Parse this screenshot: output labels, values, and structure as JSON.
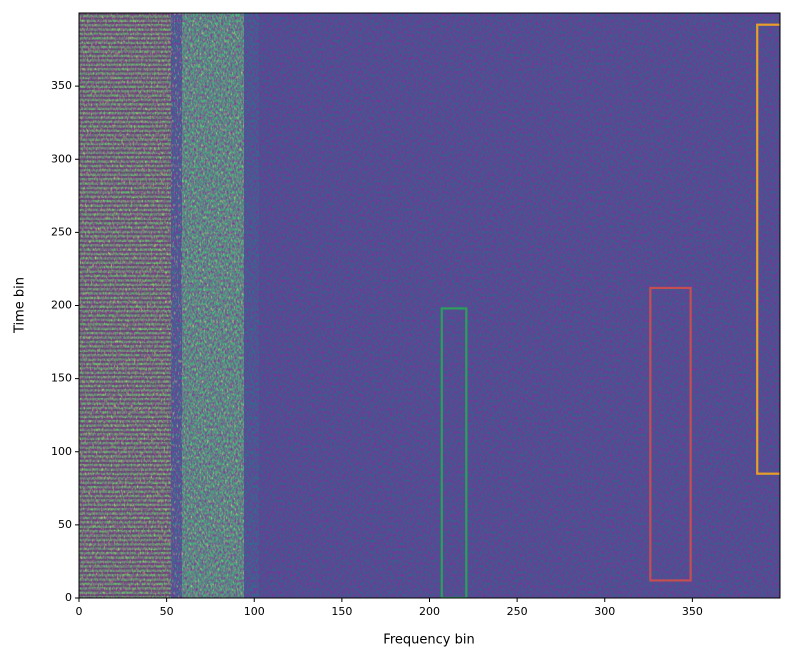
{
  "chart_data": {
    "type": "spectrogram",
    "xlabel": "Frequency bin",
    "ylabel": "Time bin",
    "xlim": [
      0,
      400
    ],
    "ylim": [
      0,
      400
    ],
    "xticks": [
      0,
      50,
      100,
      150,
      200,
      250,
      300,
      350
    ],
    "yticks": [
      0,
      50,
      100,
      150,
      200,
      250,
      300,
      350
    ],
    "boxes": [
      {
        "x0": 207,
        "x1": 221,
        "y0": 0,
        "y1": 198,
        "color": "#2ca05a"
      },
      {
        "x0": 326,
        "x1": 349,
        "y0": 12,
        "y1": 212,
        "color": "#c44e52"
      },
      {
        "x0": 387,
        "x1": 401,
        "y0": 85,
        "y1": 392,
        "color": "#e89f2a"
      }
    ]
  }
}
